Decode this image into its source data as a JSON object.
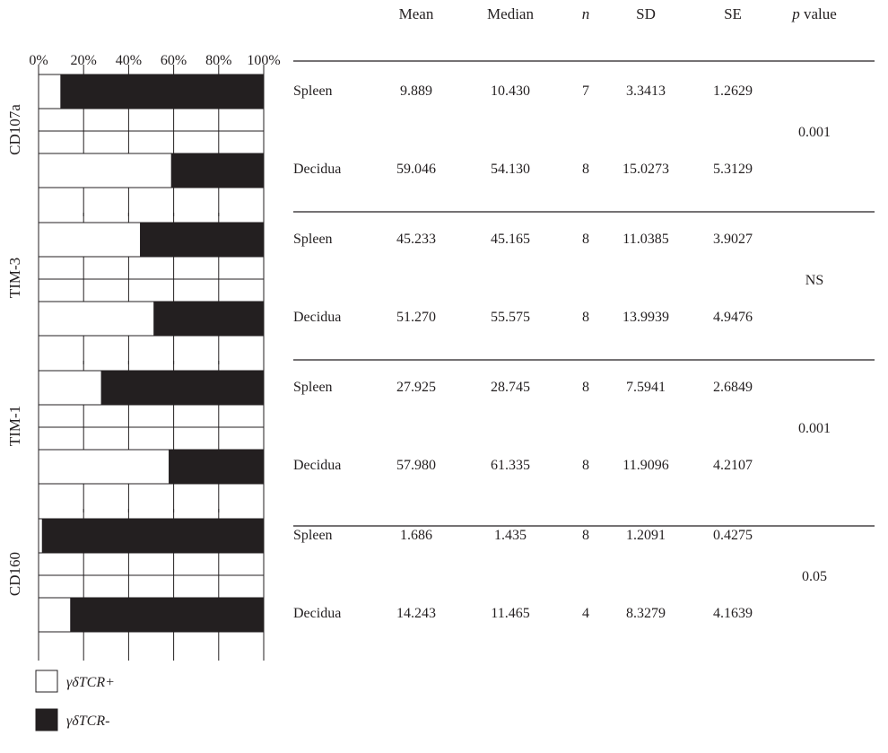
{
  "chart_data": {
    "type": "bar",
    "subtype": "stacked-100-percent-horizontal",
    "x_ticks": [
      "0%",
      "20%",
      "40%",
      "60%",
      "80%",
      "100%"
    ],
    "xlim": [
      0,
      100
    ],
    "legend": [
      {
        "label": "γδTCR+",
        "color": "#ffffff"
      },
      {
        "label": "γδTCR-",
        "color": "#231f20"
      }
    ],
    "legend_position": "bottom-left",
    "grid": true,
    "table_headers": [
      "Mean",
      "Median",
      "n",
      "SD",
      "SE",
      "p value"
    ],
    "groups": [
      {
        "marker": "CD107a",
        "p_value": "0.001",
        "rows": [
          {
            "tissue": "Spleen",
            "mean": "9.889",
            "median": "10.430",
            "n": "7",
            "sd": "3.3413",
            "se": "1.2629",
            "pos_percent": 9.889
          },
          {
            "tissue": "Decidua",
            "mean": "59.046",
            "median": "54.130",
            "n": "8",
            "sd": "15.0273",
            "se": "5.3129",
            "pos_percent": 59.046
          }
        ]
      },
      {
        "marker": "TIM-3",
        "p_value": "NS",
        "rows": [
          {
            "tissue": "Spleen",
            "mean": "45.233",
            "median": "45.165",
            "n": "8",
            "sd": "11.0385",
            "se": "3.9027",
            "pos_percent": 45.233
          },
          {
            "tissue": "Decidua",
            "mean": "51.270",
            "median": "55.575",
            "n": "8",
            "sd": "13.9939",
            "se": "4.9476",
            "pos_percent": 51.27
          }
        ]
      },
      {
        "marker": "TIM-1",
        "p_value": "0.001",
        "rows": [
          {
            "tissue": "Spleen",
            "mean": "27.925",
            "median": "28.745",
            "n": "8",
            "sd": "7.5941",
            "se": "2.6849",
            "pos_percent": 27.925
          },
          {
            "tissue": "Decidua",
            "mean": "57.980",
            "median": "61.335",
            "n": "8",
            "sd": "11.9096",
            "se": "4.2107",
            "pos_percent": 57.98
          }
        ]
      },
      {
        "marker": "CD160",
        "p_value": "0.05",
        "rows": [
          {
            "tissue": "Spleen",
            "mean": "1.686",
            "median": "1.435",
            "n": "8",
            "sd": "1.2091",
            "se": "0.4275",
            "pos_percent": 1.686
          },
          {
            "tissue": "Decidua",
            "mean": "14.243",
            "median": "11.465",
            "n": "4",
            "sd": "8.3279",
            "se": "4.1639",
            "pos_percent": 14.243
          }
        ]
      }
    ]
  }
}
